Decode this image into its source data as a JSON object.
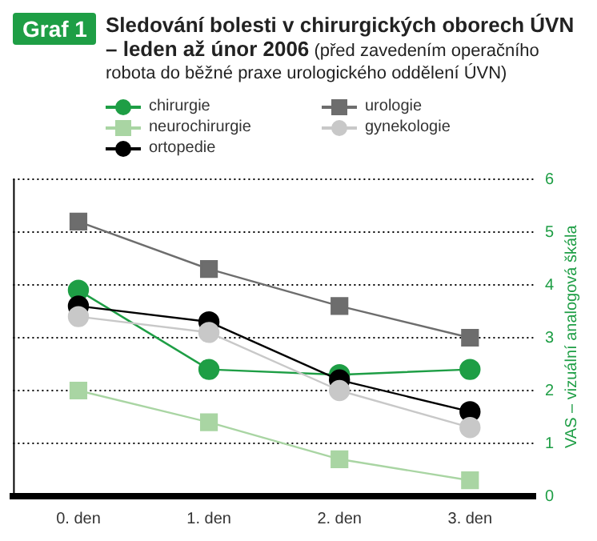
{
  "chart_data": {
    "type": "line",
    "title": "Sledování bolesti v chirurgických oborech ÚVN – leden až únor 2006",
    "subtitle": "(před zavedením operačního robota do běžné praxe urologického oddělení ÚVN)",
    "annotations": [
      "Graf 1"
    ],
    "ylabel": "VAS – vizuální analogová škála",
    "categories": [
      "0. den",
      "1. den",
      "2. den",
      "3. den"
    ],
    "series": [
      {
        "name": "chirurgie",
        "color": "#1e9e45",
        "marker": "circle",
        "values": [
          3.9,
          2.4,
          2.3,
          2.4
        ]
      },
      {
        "name": "neurochirurgie",
        "color": "#a9d5a3",
        "marker": "square",
        "values": [
          2.0,
          1.4,
          0.7,
          0.3
        ]
      },
      {
        "name": "ortopedie",
        "color": "#000000",
        "marker": "circle",
        "values": [
          3.6,
          3.3,
          2.2,
          1.6
        ]
      },
      {
        "name": "urologie",
        "color": "#6d6d6d",
        "marker": "square",
        "values": [
          5.2,
          4.3,
          3.6,
          3.0
        ]
      },
      {
        "name": "gynekologie",
        "color": "#c8c8c8",
        "marker": "circle",
        "values": [
          3.4,
          3.1,
          2.0,
          1.3
        ]
      }
    ],
    "ylim": [
      0,
      6
    ],
    "yticks": [
      0,
      1,
      2,
      3,
      4,
      5,
      6
    ],
    "grid": "y",
    "legend": "top left"
  }
}
